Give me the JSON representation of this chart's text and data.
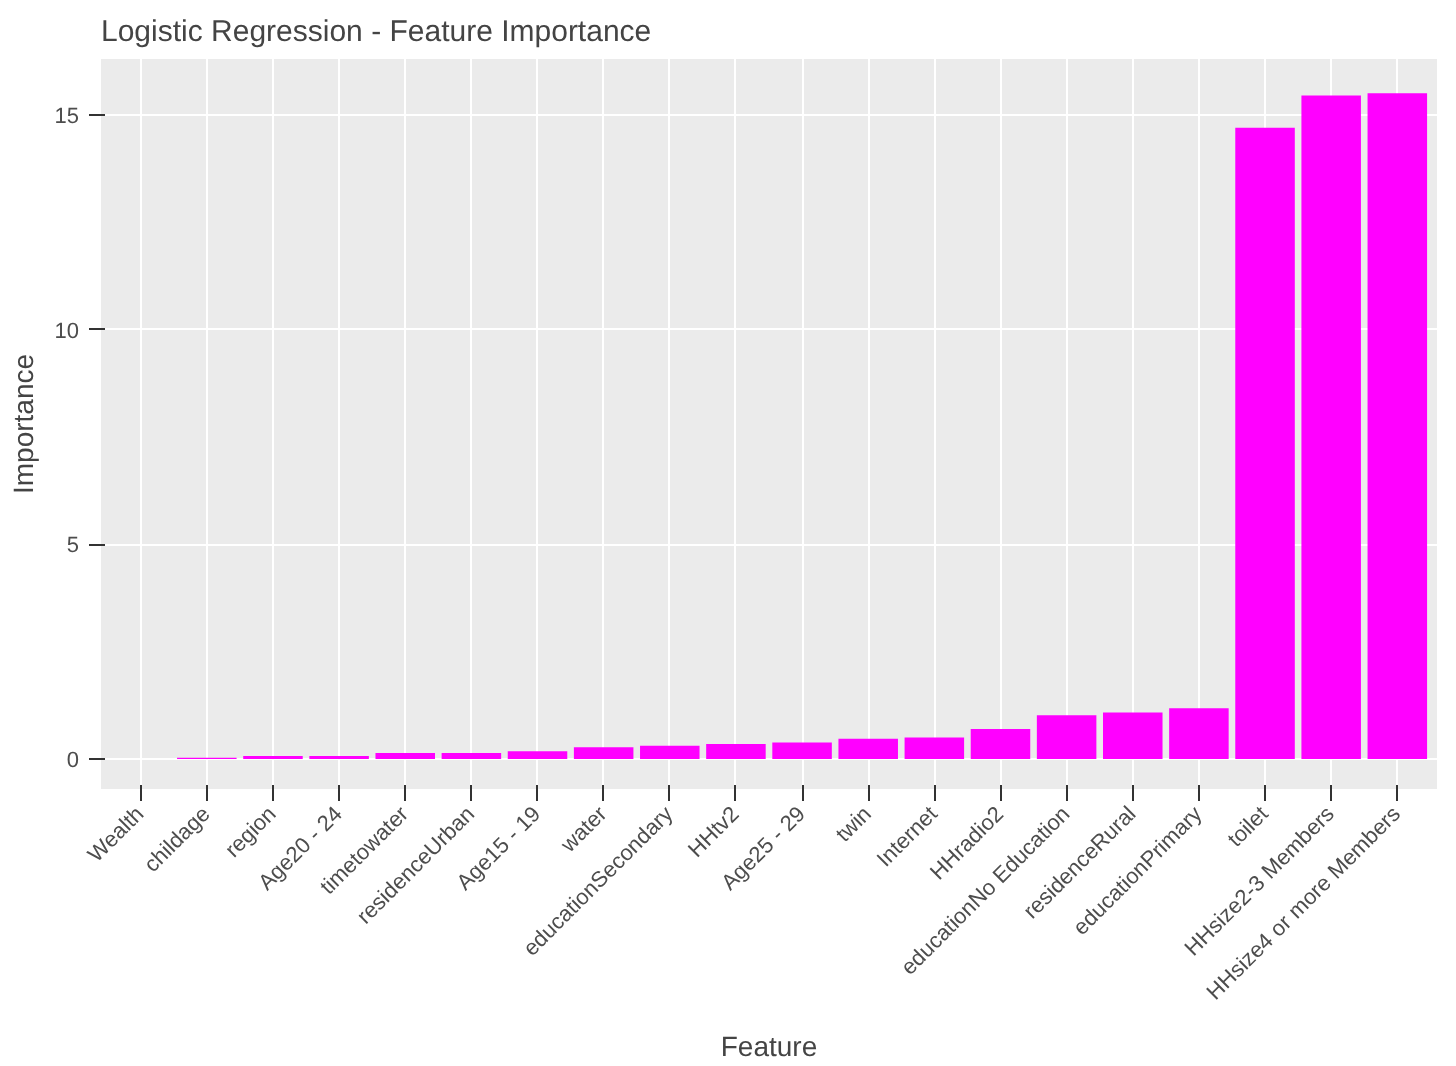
{
  "chart_data": {
    "type": "bar",
    "title": "Logistic Regression - Feature Importance",
    "xlabel": "Feature",
    "ylabel": "Importance",
    "categories": [
      "Wealth",
      "childage",
      "region",
      "Age20 - 24",
      "timetowater",
      "residenceUrban",
      "Age15 - 19",
      "water",
      "educationSecondary",
      "HHtv2",
      "Age25 - 29",
      "twin",
      "Internet",
      "HHradio2",
      "educationNo Education",
      "residenceRural",
      "educationPrimary",
      "toilet",
      "HHsize2-3 Members",
      "HHsize4 or more Members"
    ],
    "values": [
      0,
      0.03,
      0.07,
      0.07,
      0.14,
      0.14,
      0.18,
      0.27,
      0.31,
      0.35,
      0.38,
      0.47,
      0.5,
      0.7,
      1.02,
      1.08,
      1.18,
      14.7,
      15.45,
      15.5
    ],
    "color": "#ff00ff",
    "ylim": [
      -0.7,
      16.3
    ],
    "yticks": [
      0,
      5,
      10,
      15
    ],
    "grid": true
  }
}
